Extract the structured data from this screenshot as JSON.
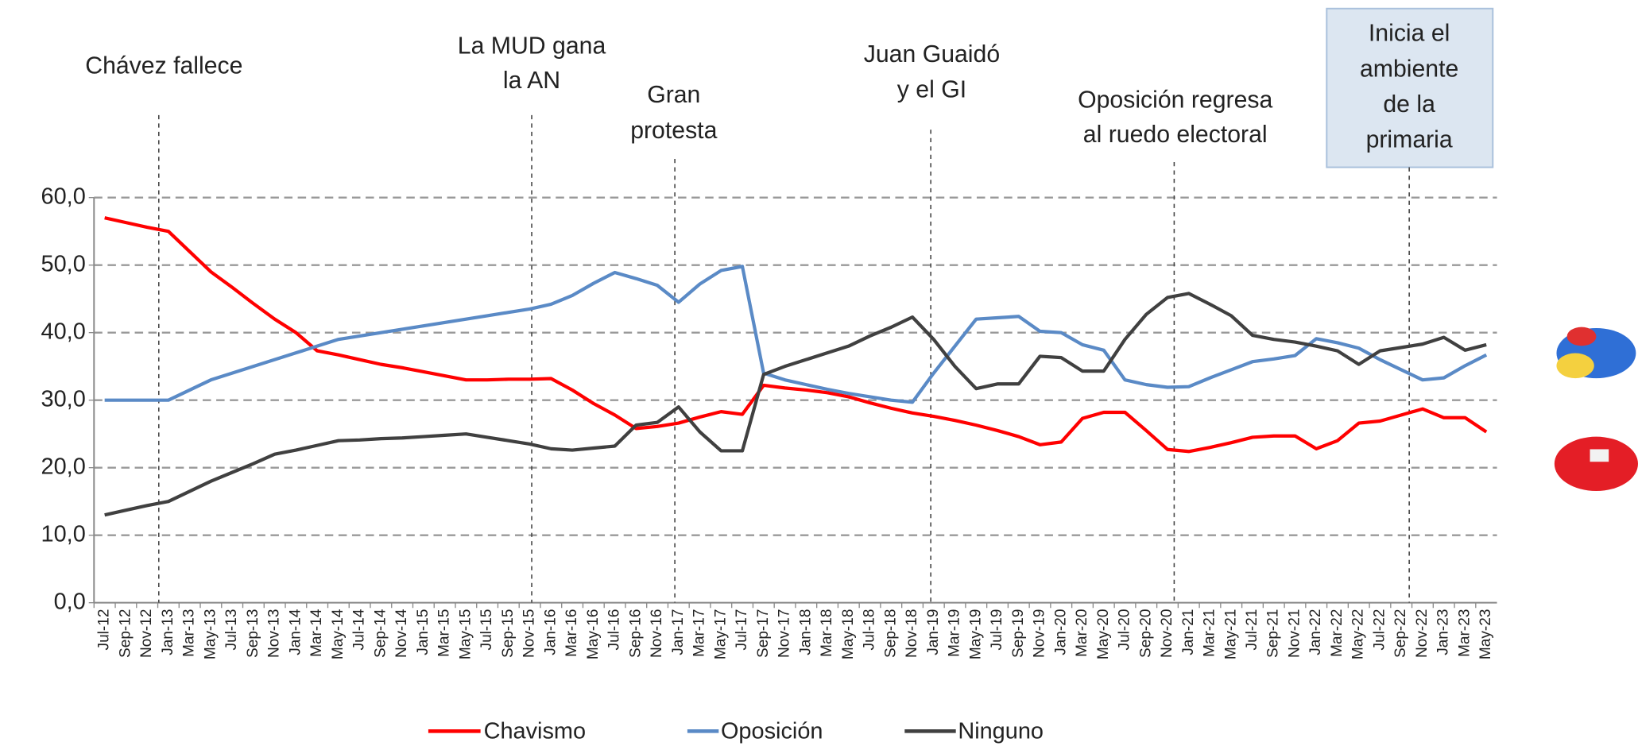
{
  "chart_data": {
    "type": "line",
    "categories": [
      "Jul-12",
      "Sep-12",
      "Nov-12",
      "Jan-13",
      "Mar-13",
      "May-13",
      "Jul-13",
      "Sep-13",
      "Nov-13",
      "Jan-14",
      "Mar-14",
      "May-14",
      "Jul-14",
      "Sep-14",
      "Nov-14",
      "Jan-15",
      "Mar-15",
      "May-15",
      "Jul-15",
      "Sep-15",
      "Nov-15",
      "Jan-16",
      "Mar-16",
      "May-16",
      "Jul-16",
      "Sep-16",
      "Nov-16",
      "Jan-17",
      "Mar-17",
      "May-17",
      "Jul-17",
      "Sep-17",
      "Nov-17",
      "Jan-18",
      "Mar-18",
      "May-18",
      "Jul-18",
      "Sep-18",
      "Nov-18",
      "Jan-19",
      "Mar-19",
      "May-19",
      "Jul-19",
      "Sep-19",
      "Nov-19",
      "Jan-20",
      "Mar-20",
      "May-20",
      "Jul-20",
      "Sep-20",
      "Nov-20",
      "Jan-21",
      "Mar-21",
      "May-21",
      "Jul-21",
      "Sep-21",
      "Nov-21",
      "Jan-22",
      "Mar-22",
      "May-22",
      "Jul-22",
      "Sep-22",
      "Nov-22",
      "Jan-23",
      "Mar-23",
      "May-23"
    ],
    "series": [
      {
        "name": "Chavismo",
        "color": "#ff0000",
        "values": [
          57,
          56.3,
          55.6,
          55,
          52,
          49,
          46.7,
          44.3,
          42,
          40,
          37.3,
          36.7,
          36,
          35.3,
          34.8,
          34.2,
          33.6,
          33,
          33,
          33.1,
          33.1,
          33.2,
          31.5,
          29.5,
          27.8,
          25.8,
          26.1,
          26.6,
          27.5,
          28.3,
          27.9,
          32.2,
          31.8,
          31.5,
          31.1,
          30.5,
          29.6,
          28.8,
          28.1,
          27.6,
          27,
          26.3,
          25.5,
          24.6,
          23.4,
          23.8,
          27.3,
          28.2,
          28.2,
          25.5,
          22.7,
          22.4,
          23,
          23.7,
          24.5,
          24.7,
          24.7,
          22.8,
          24,
          26.6,
          26.9,
          27.8,
          28.7,
          27.4,
          27.4,
          25.3
        ]
      },
      {
        "name": "Oposición",
        "color": "#5a8ac6",
        "values": [
          30,
          30,
          30,
          30,
          31.5,
          33,
          34,
          35,
          36,
          37,
          38,
          39,
          39.5,
          40,
          40.5,
          41,
          41.5,
          42,
          42.5,
          43,
          43.5,
          44.2,
          45.5,
          47.3,
          48.9,
          48,
          47,
          44.5,
          47.2,
          49.2,
          49.8,
          34,
          33,
          32.3,
          31.6,
          31,
          30.5,
          30,
          29.7,
          34,
          38,
          42,
          42.2,
          42.4,
          40.2,
          40,
          38.2,
          37.4,
          33,
          32.3,
          31.9,
          32,
          33.3,
          34.5,
          35.7,
          36.1,
          36.6,
          39.1,
          38.5,
          37.7,
          36,
          34.5,
          33,
          33.3,
          35.1,
          36.7
        ]
      },
      {
        "name": "Ninguno",
        "color": "#404040",
        "values": [
          13,
          13.7,
          14.4,
          15,
          16.5,
          18,
          19.3,
          20.6,
          22,
          22.6,
          23.3,
          24,
          24.1,
          24.3,
          24.4,
          24.6,
          24.8,
          25,
          24.5,
          24,
          23.5,
          22.8,
          22.6,
          22.9,
          23.2,
          26.3,
          26.7,
          29,
          25.3,
          22.5,
          22.5,
          33.8,
          35,
          36,
          37,
          38,
          39.5,
          40.8,
          42.3,
          39,
          35,
          31.7,
          32.4,
          32.4,
          36.5,
          36.3,
          34.3,
          34.3,
          39,
          42.7,
          45.2,
          45.8,
          44.2,
          42.5,
          39.6,
          39,
          38.6,
          38,
          37.3,
          35.3,
          37.3,
          37.8,
          38.3,
          39.3,
          37.4,
          38.2
        ]
      }
    ],
    "ylim": [
      0,
      60
    ],
    "yticks": [
      {
        "value": 0,
        "label": "0,0"
      },
      {
        "value": 10,
        "label": "10,0"
      },
      {
        "value": 20,
        "label": "20,0"
      },
      {
        "value": 30,
        "label": "30,0"
      },
      {
        "value": 40,
        "label": "40,0"
      },
      {
        "value": 50,
        "label": "50,0"
      },
      {
        "value": 60,
        "label": "60,0"
      }
    ],
    "grid": true,
    "legend": "bottom",
    "annotations": [
      {
        "lines": [
          "Chávez fallece"
        ]
      },
      {
        "lines": [
          "La MUD gana",
          "la AN"
        ]
      },
      {
        "lines": [
          "Gran",
          "protesta"
        ]
      },
      {
        "lines": [
          "Juan Guaidó",
          "y el GI"
        ]
      },
      {
        "lines": [
          "Oposición regresa",
          "al ruedo electoral"
        ]
      },
      {
        "lines": [
          "Inicia el",
          "ambiente",
          "de la",
          "primaria"
        ]
      }
    ]
  }
}
